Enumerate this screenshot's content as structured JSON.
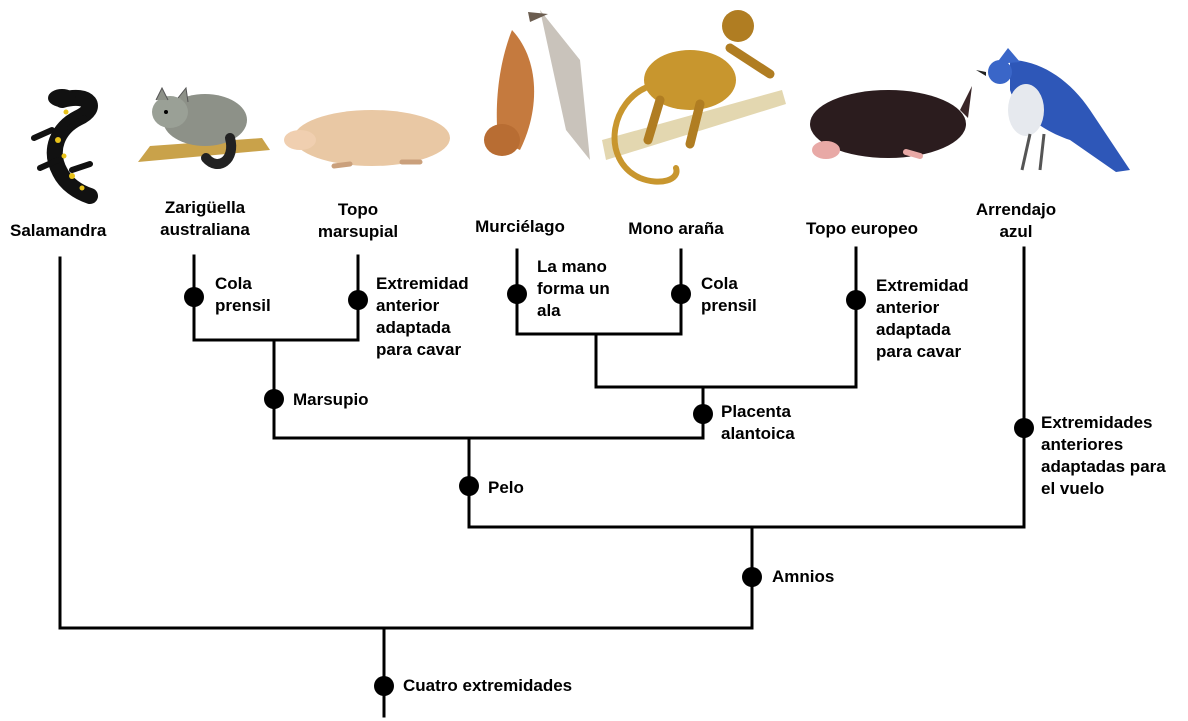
{
  "taxa": {
    "salamander": "Salamandra",
    "possum": "Zarigüella\naustraliana",
    "marsupial_mole": "Topo\nmarsupial",
    "bat": "Murciélago",
    "spider_monkey": "Mono araña",
    "european_mole": "Topo europeo",
    "blue_jay": "Arrendajo\nazul"
  },
  "traits": {
    "possum_tail": "Cola\nprensil",
    "marsupial_mole_limb": "Extremidad\nanterior\nadaptada\npara cavar",
    "bat_wing": "La mano\nforma un\nala",
    "monkey_tail": "Cola\nprensil",
    "european_mole_limb": "Extremidad\nanterior\nadaptada\npara cavar",
    "marsupium": "Marsupio",
    "placenta": "Placenta\nalantoica",
    "hair": "Pelo",
    "bird_flight": "Extremidades\nanteriores\nadaptadas para\nel vuelo",
    "amnion": "Amnios",
    "four_limbs": "Cuatro extremidades"
  },
  "colors": {
    "line": "#000000",
    "node": "#000000"
  }
}
